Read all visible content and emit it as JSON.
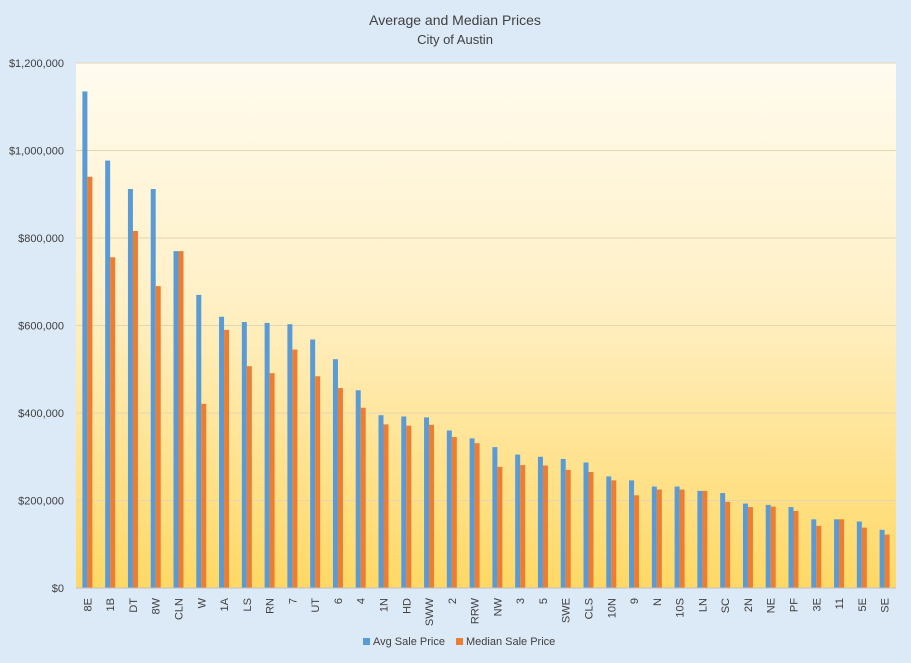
{
  "chart_data": {
    "type": "bar",
    "title": "Average and Median Prices",
    "subtitle": "City of Austin",
    "xlabel": "",
    "ylabel": "",
    "ylim": [
      0,
      1200000
    ],
    "y_ticks": [
      "$0",
      "$200,000",
      "$400,000",
      "$600,000",
      "$800,000",
      "$1,000,000",
      "$1,200,000"
    ],
    "y_tick_values": [
      0,
      200000,
      400000,
      600000,
      800000,
      1000000,
      1200000
    ],
    "grid": true,
    "legend_position": "bottom",
    "categories": [
      "8E",
      "1B",
      "DT",
      "8W",
      "CLN",
      "W",
      "1A",
      "LS",
      "RN",
      "7",
      "UT",
      "6",
      "4",
      "1N",
      "HD",
      "SWW",
      "2",
      "RRW",
      "NW",
      "3",
      "5",
      "SWE",
      "CLS",
      "10N",
      "9",
      "N",
      "10S",
      "LN",
      "SC",
      "2N",
      "NE",
      "PF",
      "3E",
      "11",
      "5E",
      "SE"
    ],
    "series": [
      {
        "name": "Avg Sale Price",
        "color": "#5b9bd5",
        "values": [
          1135000,
          977000,
          912000,
          912000,
          770000,
          670000,
          620000,
          608000,
          606000,
          603000,
          568000,
          523000,
          452000,
          395000,
          392000,
          390000,
          360000,
          342000,
          322000,
          305000,
          300000,
          295000,
          287000,
          255000,
          246000,
          232000,
          232000,
          222000,
          217000,
          193000,
          190000,
          185000,
          157000,
          157000,
          152000,
          133000
        ]
      },
      {
        "name": "Median Sale Price",
        "color": "#ed7d31",
        "values": [
          940000,
          756000,
          816000,
          690000,
          770000,
          421000,
          590000,
          507000,
          491000,
          545000,
          484000,
          457000,
          412000,
          374000,
          371000,
          373000,
          345000,
          331000,
          277000,
          281000,
          280000,
          270000,
          265000,
          246000,
          212000,
          225000,
          225000,
          222000,
          197000,
          185000,
          186000,
          176000,
          142000,
          157000,
          138000,
          122000
        ]
      }
    ]
  }
}
